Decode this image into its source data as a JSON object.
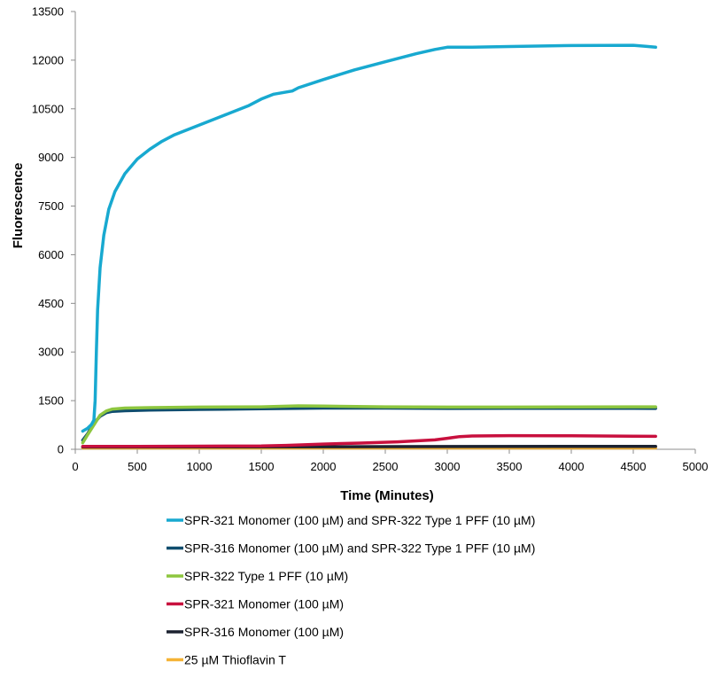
{
  "chart_data": {
    "type": "line",
    "title": "",
    "xlabel": "Time (Minutes)",
    "ylabel": "Fluorescence",
    "xlim": [
      0,
      5000
    ],
    "ylim": [
      0,
      13500
    ],
    "x_ticks": [
      0,
      500,
      1000,
      1500,
      2000,
      2500,
      3000,
      3500,
      4000,
      4500,
      5000
    ],
    "y_ticks": [
      0,
      1500,
      3000,
      4500,
      6000,
      7500,
      9000,
      10500,
      12000,
      13500
    ],
    "x_tick_labels": [
      "0",
      "500",
      "1000",
      "1500",
      "2000",
      "2500",
      "3000",
      "3500",
      "4000",
      "4500",
      "5000"
    ],
    "y_tick_labels": [
      "0",
      "1500",
      "3000",
      "4500",
      "6000",
      "7500",
      "9000",
      "10500",
      "12000",
      "13500"
    ],
    "grid": false,
    "legend_position": "bottom",
    "series": [
      {
        "name": "SPR-321 Monomer (100 µM) and SPR-322 Type 1 PFF (10 µM)",
        "color": "#18A9D0",
        "points": [
          [
            60,
            560
          ],
          [
            100,
            650
          ],
          [
            130,
            760
          ],
          [
            150,
            900
          ],
          [
            160,
            1500
          ],
          [
            170,
            3000
          ],
          [
            180,
            4300
          ],
          [
            200,
            5600
          ],
          [
            230,
            6600
          ],
          [
            270,
            7400
          ],
          [
            320,
            7950
          ],
          [
            400,
            8500
          ],
          [
            500,
            8950
          ],
          [
            600,
            9250
          ],
          [
            700,
            9500
          ],
          [
            800,
            9700
          ],
          [
            1000,
            10000
          ],
          [
            1200,
            10300
          ],
          [
            1400,
            10600
          ],
          [
            1500,
            10800
          ],
          [
            1600,
            10950
          ],
          [
            1750,
            11050
          ],
          [
            1800,
            11150
          ],
          [
            2000,
            11400
          ],
          [
            2250,
            11700
          ],
          [
            2500,
            11950
          ],
          [
            2750,
            12200
          ],
          [
            2900,
            12330
          ],
          [
            3000,
            12400
          ],
          [
            3200,
            12400
          ],
          [
            3500,
            12420
          ],
          [
            4000,
            12450
          ],
          [
            4500,
            12460
          ],
          [
            4600,
            12430
          ],
          [
            4680,
            12400
          ]
        ]
      },
      {
        "name": "SPR-316 Monomer (100 µM) and SPR-322 Type 1 PFF (10 µM)",
        "color": "#0F4D6E",
        "points": [
          [
            60,
            280
          ],
          [
            100,
            480
          ],
          [
            150,
            800
          ],
          [
            200,
            1020
          ],
          [
            250,
            1130
          ],
          [
            300,
            1170
          ],
          [
            400,
            1190
          ],
          [
            600,
            1210
          ],
          [
            1000,
            1230
          ],
          [
            1500,
            1250
          ],
          [
            2000,
            1270
          ],
          [
            2500,
            1270
          ],
          [
            3000,
            1260
          ],
          [
            3500,
            1265
          ],
          [
            4000,
            1265
          ],
          [
            4500,
            1265
          ],
          [
            4680,
            1260
          ]
        ]
      },
      {
        "name": "SPR-322 Type 1 PFF (10 µM)",
        "color": "#8DC63F",
        "points": [
          [
            60,
            200
          ],
          [
            100,
            450
          ],
          [
            150,
            750
          ],
          [
            200,
            1050
          ],
          [
            250,
            1180
          ],
          [
            300,
            1240
          ],
          [
            400,
            1270
          ],
          [
            600,
            1285
          ],
          [
            1000,
            1300
          ],
          [
            1500,
            1310
          ],
          [
            1800,
            1340
          ],
          [
            2000,
            1330
          ],
          [
            2500,
            1310
          ],
          [
            3000,
            1300
          ],
          [
            3500,
            1300
          ],
          [
            4000,
            1305
          ],
          [
            4500,
            1310
          ],
          [
            4680,
            1310
          ]
        ]
      },
      {
        "name": "SPR-321 Monomer (100 µM)",
        "color": "#C8103E",
        "points": [
          [
            60,
            90
          ],
          [
            500,
            90
          ],
          [
            1000,
            95
          ],
          [
            1500,
            100
          ],
          [
            1700,
            120
          ],
          [
            2000,
            160
          ],
          [
            2300,
            190
          ],
          [
            2600,
            230
          ],
          [
            2900,
            290
          ],
          [
            3000,
            340
          ],
          [
            3100,
            390
          ],
          [
            3200,
            410
          ],
          [
            3500,
            420
          ],
          [
            4000,
            415
          ],
          [
            4500,
            405
          ],
          [
            4680,
            400
          ]
        ]
      },
      {
        "name": "SPR-316 Monomer (100 µM)",
        "color": "#1C2230",
        "points": [
          [
            60,
            70
          ],
          [
            1000,
            75
          ],
          [
            2000,
            80
          ],
          [
            3000,
            85
          ],
          [
            4000,
            88
          ],
          [
            4680,
            90
          ]
        ]
      },
      {
        "name": "25 µM Thioflavin T",
        "color": "#F5B335",
        "points": [
          [
            60,
            40
          ],
          [
            1000,
            40
          ],
          [
            2000,
            40
          ],
          [
            3000,
            40
          ],
          [
            4000,
            40
          ],
          [
            4680,
            40
          ]
        ]
      }
    ]
  }
}
